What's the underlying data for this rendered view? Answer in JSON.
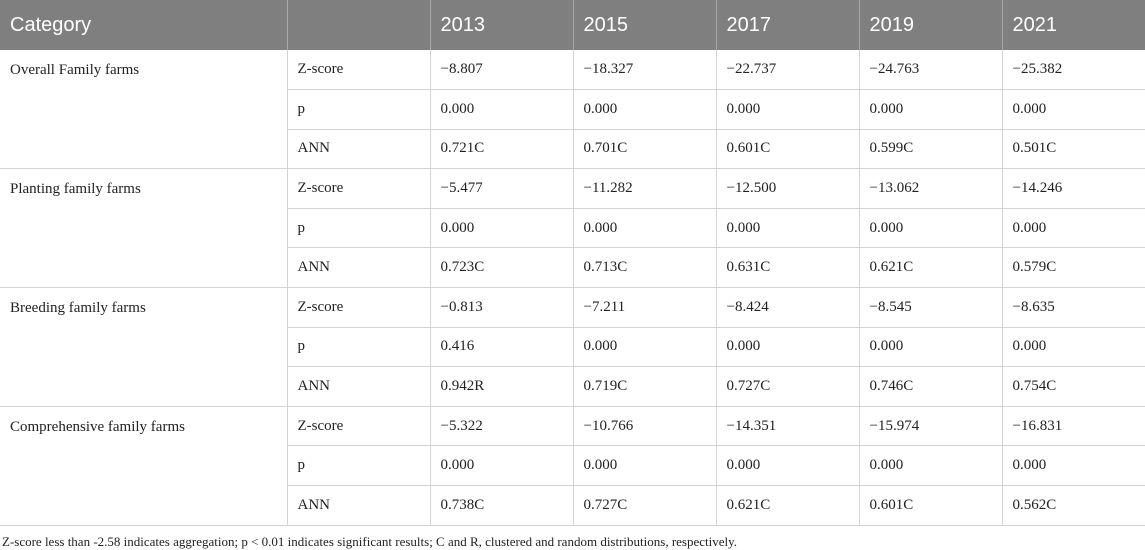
{
  "table": {
    "headers": [
      "Category",
      "",
      "2013",
      "2015",
      "2017",
      "2019",
      "2021"
    ],
    "groups": [
      {
        "category": "Overall Family farms",
        "rows": [
          {
            "metric": "Z-score",
            "values": [
              "−8.807",
              "−18.327",
              "−22.737",
              "−24.763",
              "−25.382"
            ]
          },
          {
            "metric": "p",
            "values": [
              "0.000",
              "0.000",
              "0.000",
              "0.000",
              "0.000"
            ]
          },
          {
            "metric": "ANN",
            "values": [
              "0.721C",
              "0.701C",
              "0.601C",
              "0.599C",
              "0.501C"
            ]
          }
        ]
      },
      {
        "category": "Planting family farms",
        "rows": [
          {
            "metric": "Z-score",
            "values": [
              "−5.477",
              "−11.282",
              "−12.500",
              "−13.062",
              "−14.246"
            ]
          },
          {
            "metric": "p",
            "values": [
              "0.000",
              "0.000",
              "0.000",
              "0.000",
              "0.000"
            ]
          },
          {
            "metric": "ANN",
            "values": [
              "0.723C",
              "0.713C",
              "0.631C",
              "0.621C",
              "0.579C"
            ]
          }
        ]
      },
      {
        "category": "Breeding family farms",
        "rows": [
          {
            "metric": "Z-score",
            "values": [
              "−0.813",
              "−7.211",
              "−8.424",
              "−8.545",
              "−8.635"
            ]
          },
          {
            "metric": "p",
            "values": [
              "0.416",
              "0.000",
              "0.000",
              "0.000",
              "0.000"
            ]
          },
          {
            "metric": "ANN",
            "values": [
              "0.942R",
              "0.719C",
              "0.727C",
              "0.746C",
              "0.754C"
            ]
          }
        ]
      },
      {
        "category": "Comprehensive family farms",
        "rows": [
          {
            "metric": "Z-score",
            "values": [
              "−5.322",
              "−10.766",
              "−14.351",
              "−15.974",
              "−16.831"
            ]
          },
          {
            "metric": "p",
            "values": [
              "0.000",
              "0.000",
              "0.000",
              "0.000",
              "0.000"
            ]
          },
          {
            "metric": "ANN",
            "values": [
              "0.738C",
              "0.727C",
              "0.621C",
              "0.601C",
              "0.562C"
            ]
          }
        ]
      }
    ]
  },
  "footnote": "Z-score less than -2.58 indicates aggregation; p < 0.01 indicates significant results; C and R, clustered and random distributions, respectively."
}
